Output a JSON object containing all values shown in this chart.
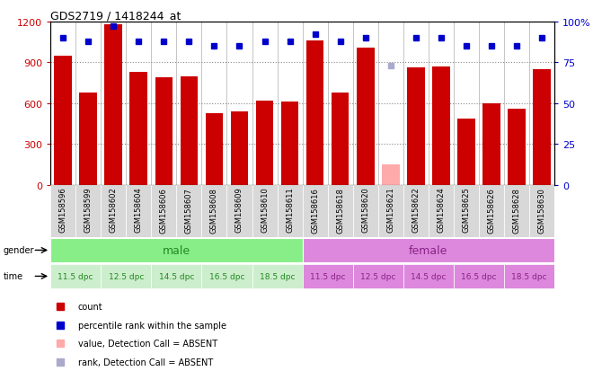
{
  "title": "GDS2719 / 1418244_at",
  "samples": [
    "GSM158596",
    "GSM158599",
    "GSM158602",
    "GSM158604",
    "GSM158606",
    "GSM158607",
    "GSM158608",
    "GSM158609",
    "GSM158610",
    "GSM158611",
    "GSM158616",
    "GSM158618",
    "GSM158620",
    "GSM158621",
    "GSM158622",
    "GSM158624",
    "GSM158625",
    "GSM158626",
    "GSM158628",
    "GSM158630"
  ],
  "counts": [
    950,
    680,
    1180,
    830,
    790,
    800,
    530,
    540,
    620,
    610,
    1060,
    680,
    1010,
    150,
    860,
    870,
    490,
    600,
    560,
    850
  ],
  "absent_flags": [
    false,
    false,
    false,
    false,
    false,
    false,
    false,
    false,
    false,
    false,
    false,
    false,
    false,
    true,
    false,
    false,
    false,
    false,
    false,
    false
  ],
  "percentile_ranks": [
    90,
    88,
    97,
    88,
    88,
    88,
    85,
    85,
    88,
    88,
    92,
    88,
    90,
    73,
    90,
    90,
    85,
    85,
    85,
    90
  ],
  "absent_rank_flags": [
    false,
    false,
    false,
    false,
    false,
    false,
    false,
    false,
    false,
    false,
    false,
    false,
    false,
    true,
    false,
    false,
    false,
    false,
    false,
    false
  ],
  "bar_color": "#cc0000",
  "absent_bar_color": "#ffaaaa",
  "dot_color": "#0000cc",
  "absent_dot_color": "#aaaacc",
  "ylim_left": [
    0,
    1200
  ],
  "ylim_right": [
    0,
    100
  ],
  "yticks_left": [
    0,
    300,
    600,
    900,
    1200
  ],
  "yticks_right": [
    0,
    25,
    50,
    75,
    100
  ],
  "gender_split": 10,
  "gender_labels": [
    "male",
    "female"
  ],
  "gender_color_male": "#88ee88",
  "gender_color_female": "#dd88dd",
  "time_colors": [
    "#cceecc",
    "#cceecc",
    "#cceecc",
    "#cceecc",
    "#cceecc",
    "#dd88dd",
    "#dd88dd",
    "#dd88dd",
    "#dd88dd",
    "#dd88dd"
  ],
  "time_labels": [
    "11.5 dpc",
    "12.5 dpc",
    "14.5 dpc",
    "16.5 dpc",
    "18.5 dpc",
    "11.5 dpc",
    "12.5 dpc",
    "14.5 dpc",
    "16.5 dpc",
    "18.5 dpc"
  ],
  "legend_items": [
    {
      "label": "count",
      "color": "#cc0000"
    },
    {
      "label": "percentile rank within the sample",
      "color": "#0000cc"
    },
    {
      "label": "value, Detection Call = ABSENT",
      "color": "#ffaaaa"
    },
    {
      "label": "rank, Detection Call = ABSENT",
      "color": "#aaaacc"
    }
  ],
  "bg_color": "#ffffff",
  "grid_color": "#888888",
  "left_tick_color": "#cc0000",
  "right_tick_color": "#0000cc"
}
